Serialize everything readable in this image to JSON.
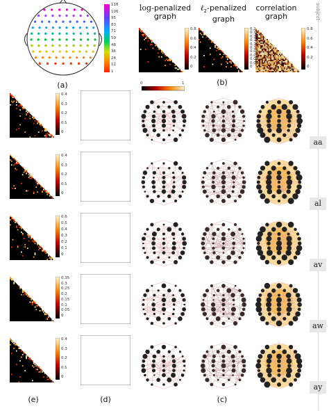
{
  "panels": {
    "a": {
      "label": "(a)",
      "colorbar_ticks": [
        "118",
        "106",
        "95",
        "83",
        "71",
        "59",
        "48",
        "36",
        "24",
        "12",
        "1"
      ]
    },
    "b": {
      "label": "(b)"
    },
    "c": {
      "label": "(c)"
    },
    "d": {
      "label": "(d)"
    },
    "e": {
      "label": "(e)"
    }
  },
  "headers": {
    "log_graph_prefix": "log",
    "log_graph_suffix": "-penalized",
    "log_graph_line2": "graph",
    "l2_graph_prefix": "ℓ",
    "l2_graph_sub": "2",
    "l2_graph_suffix": "-penalized",
    "l2_graph_line2": "graph",
    "corr_graph_line1": "correlation",
    "corr_graph_line2": "graph",
    "subject_vertical": "subject"
  },
  "scale_bar": {
    "min": "0",
    "max": "1"
  },
  "b_colorbars": [
    [
      "0.8",
      "0.6",
      "0.4",
      "0.2",
      "0"
    ],
    [
      "0.2",
      "0.18",
      "0.16",
      "0.14",
      "0.12",
      "0.1",
      "0.08",
      "0.06",
      "0.04",
      "0.02",
      "0"
    ],
    [
      "0.8",
      "0.6",
      "0.4",
      "0.2",
      "0"
    ]
  ],
  "subjects": [
    "aa",
    "al",
    "av",
    "aw",
    "ay"
  ],
  "e_colorbars": [
    [
      "0.4",
      "0.3",
      "0.2",
      "0.1",
      "0"
    ],
    [
      "0.4",
      "0.3",
      "0.2",
      "0.1",
      "0"
    ],
    [
      "0.6",
      "0.5",
      "0.4",
      "0.3",
      "0.2",
      "0.1",
      "0"
    ],
    [
      "0.35",
      "0.3",
      "0.25",
      "0.2",
      "0.15",
      "0.1",
      "0.05",
      "0"
    ],
    [
      "0.4",
      "0.3",
      "0.2",
      "0.1",
      "0"
    ]
  ],
  "colors": {
    "heat_bg": "#000000",
    "accent_orange": "#f0a020",
    "edge_pink": "#e8a0a0",
    "subject_bg": "#e8e8e8"
  }
}
